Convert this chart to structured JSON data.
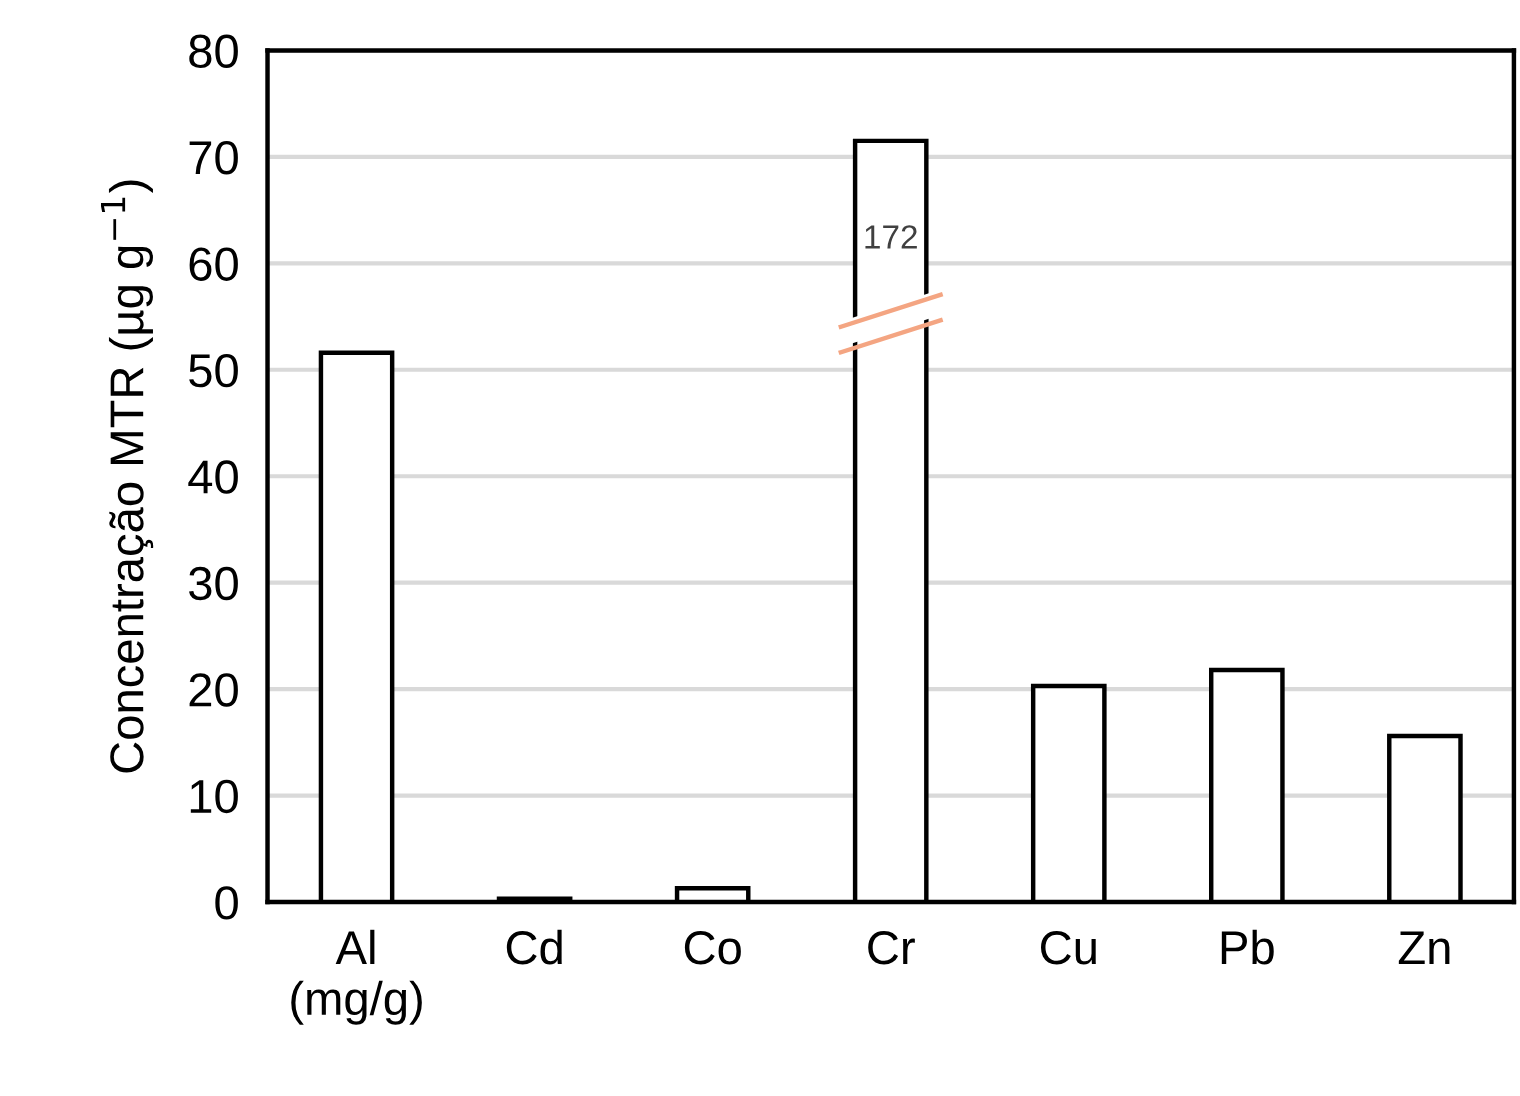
{
  "chart_data": {
    "type": "bar",
    "ylabel": "Concentração MTR (µg g$^{−1}$)",
    "categories": [
      "Al\n(mg/g)",
      "Cd",
      "Co",
      "Cr",
      "Cu",
      "Pb",
      "Zn"
    ],
    "values": [
      51.6,
      0.3,
      1.3,
      71.5,
      20.3,
      21.8,
      15.6
    ],
    "color": "#ffffff",
    "ylim": [
      0,
      80
    ],
    "yticks": [
      0,
      10,
      20,
      30,
      40,
      50,
      60,
      70,
      80
    ],
    "grid": "y",
    "annotations": [
      "172"
    ]
  }
}
